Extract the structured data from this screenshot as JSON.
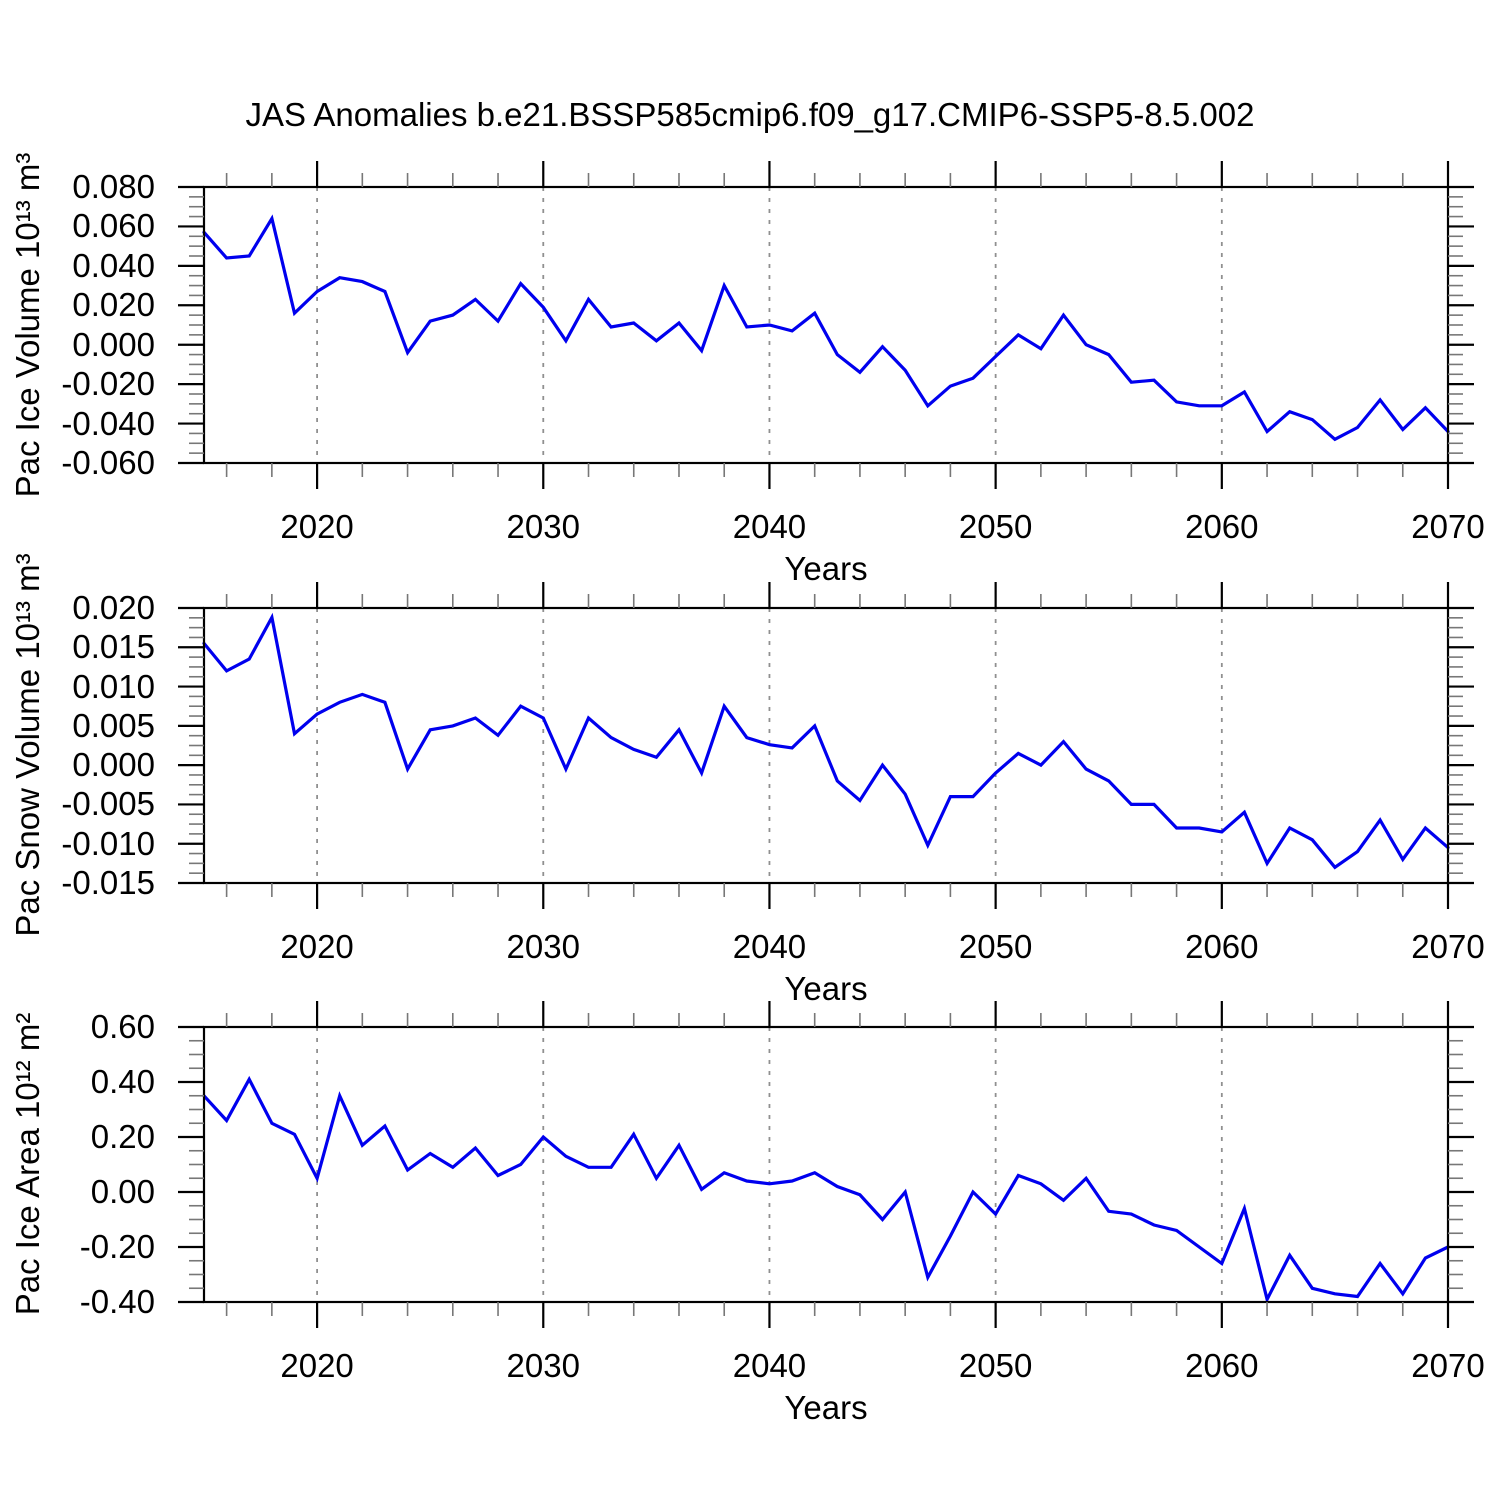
{
  "title": "JAS Anomalies b.e21.BSSP585cmip6.f09_g17.CMIP6-SSP5-8.5.002",
  "line_color": "#0000ee",
  "grid_color": "#909090",
  "axis_color": "#000000",
  "chart_data": [
    {
      "type": "line",
      "ylabel": "Pac Ice Volume 10¹³ m³",
      "xlabel": "Years",
      "series_name": "Pac Ice Volume anomaly",
      "years": [
        2015,
        2016,
        2017,
        2018,
        2019,
        2020,
        2021,
        2022,
        2023,
        2024,
        2025,
        2026,
        2027,
        2028,
        2029,
        2030,
        2031,
        2032,
        2033,
        2034,
        2035,
        2036,
        2037,
        2038,
        2039,
        2040,
        2041,
        2042,
        2043,
        2044,
        2045,
        2046,
        2047,
        2048,
        2049,
        2050,
        2051,
        2052,
        2053,
        2054,
        2055,
        2056,
        2057,
        2058,
        2059,
        2060,
        2061,
        2062,
        2063,
        2064,
        2065,
        2066,
        2067,
        2068,
        2069,
        2070
      ],
      "values": [
        0.057,
        0.044,
        0.045,
        0.064,
        0.016,
        0.027,
        0.034,
        0.032,
        0.027,
        -0.004,
        0.012,
        0.015,
        0.023,
        0.012,
        0.031,
        0.019,
        0.002,
        0.023,
        0.009,
        0.011,
        0.002,
        0.011,
        -0.003,
        0.03,
        0.009,
        0.01,
        0.007,
        0.016,
        -0.005,
        -0.014,
        -0.001,
        -0.013,
        -0.031,
        -0.021,
        -0.017,
        -0.006,
        0.005,
        -0.002,
        0.015,
        0.0,
        -0.005,
        -0.019,
        -0.018,
        -0.029,
        -0.031,
        -0.031,
        -0.024,
        -0.044,
        -0.034,
        -0.038,
        -0.048,
        -0.042,
        -0.028,
        -0.043,
        -0.032,
        -0.044
      ],
      "ylim": [
        -0.06,
        0.08
      ],
      "yticks": [
        "0.080",
        "0.060",
        "0.040",
        "0.020",
        "0.000",
        "-0.020",
        "-0.040",
        "-0.060"
      ],
      "ytick_step": 0.02,
      "ytick_minor": 0.005,
      "xlim": [
        2015,
        2070
      ],
      "xticks": [
        "2020",
        "2030",
        "2040",
        "2050",
        "2060",
        "2070"
      ],
      "xtick_minor": 2,
      "grid_years": [
        2020,
        2030,
        2040,
        2050,
        2060
      ],
      "grid": "vertical-dashed",
      "legend": "none"
    },
    {
      "type": "line",
      "ylabel": "Pac Snow Volume 10¹³ m³",
      "xlabel": "Years",
      "series_name": "Pac Snow Volume anomaly",
      "years": [
        2015,
        2016,
        2017,
        2018,
        2019,
        2020,
        2021,
        2022,
        2023,
        2024,
        2025,
        2026,
        2027,
        2028,
        2029,
        2030,
        2031,
        2032,
        2033,
        2034,
        2035,
        2036,
        2037,
        2038,
        2039,
        2040,
        2041,
        2042,
        2043,
        2044,
        2045,
        2046,
        2047,
        2048,
        2049,
        2050,
        2051,
        2052,
        2053,
        2054,
        2055,
        2056,
        2057,
        2058,
        2059,
        2060,
        2061,
        2062,
        2063,
        2064,
        2065,
        2066,
        2067,
        2068,
        2069,
        2070
      ],
      "values": [
        0.0155,
        0.012,
        0.0135,
        0.0188,
        0.004,
        0.0065,
        0.008,
        0.009,
        0.008,
        -0.0005,
        0.0045,
        0.005,
        0.006,
        0.0038,
        0.0075,
        0.006,
        -0.0005,
        0.006,
        0.0035,
        0.002,
        0.001,
        0.0045,
        -0.001,
        0.0075,
        0.0035,
        0.0026,
        0.0022,
        0.005,
        -0.002,
        -0.0045,
        0.0,
        -0.0037,
        -0.0102,
        -0.004,
        -0.004,
        -0.001,
        0.0015,
        0.0,
        0.003,
        -0.0005,
        -0.002,
        -0.005,
        -0.005,
        -0.008,
        -0.008,
        -0.0085,
        -0.006,
        -0.0125,
        -0.008,
        -0.0095,
        -0.013,
        -0.011,
        -0.007,
        -0.012,
        -0.008,
        -0.0105
      ],
      "ylim": [
        -0.015,
        0.02
      ],
      "yticks": [
        "0.020",
        "0.015",
        "0.010",
        "0.005",
        "0.000",
        "-0.005",
        "-0.010",
        "-0.015"
      ],
      "ytick_step": 0.005,
      "ytick_minor": 0.00125,
      "xlim": [
        2015,
        2070
      ],
      "xticks": [
        "2020",
        "2030",
        "2040",
        "2050",
        "2060",
        "2070"
      ],
      "xtick_minor": 2,
      "grid_years": [
        2020,
        2030,
        2040,
        2050,
        2060
      ],
      "grid": "vertical-dashed",
      "legend": "none"
    },
    {
      "type": "line",
      "ylabel": "Pac Ice Area 10¹² m²",
      "xlabel": "Years",
      "series_name": "Pac Ice Area anomaly",
      "years": [
        2015,
        2016,
        2017,
        2018,
        2019,
        2020,
        2021,
        2022,
        2023,
        2024,
        2025,
        2026,
        2027,
        2028,
        2029,
        2030,
        2031,
        2032,
        2033,
        2034,
        2035,
        2036,
        2037,
        2038,
        2039,
        2040,
        2041,
        2042,
        2043,
        2044,
        2045,
        2046,
        2047,
        2048,
        2049,
        2050,
        2051,
        2052,
        2053,
        2054,
        2055,
        2056,
        2057,
        2058,
        2059,
        2060,
        2061,
        2062,
        2063,
        2064,
        2065,
        2066,
        2067,
        2068,
        2069,
        2070
      ],
      "values": [
        0.35,
        0.26,
        0.41,
        0.25,
        0.21,
        0.05,
        0.35,
        0.17,
        0.24,
        0.08,
        0.14,
        0.09,
        0.16,
        0.06,
        0.1,
        0.2,
        0.13,
        0.09,
        0.09,
        0.21,
        0.05,
        0.17,
        0.01,
        0.07,
        0.04,
        0.03,
        0.04,
        0.07,
        0.02,
        -0.01,
        -0.1,
        0.0,
        -0.31,
        -0.16,
        0.0,
        -0.08,
        0.06,
        0.03,
        -0.03,
        0.05,
        -0.07,
        -0.08,
        -0.12,
        -0.14,
        -0.2,
        -0.26,
        -0.06,
        -0.39,
        -0.23,
        -0.35,
        -0.37,
        -0.38,
        -0.26,
        -0.37,
        -0.24,
        -0.2
      ],
      "ylim": [
        -0.4,
        0.6
      ],
      "yticks": [
        "0.60",
        "0.40",
        "0.20",
        "0.00",
        "-0.20",
        "-0.40"
      ],
      "ytick_step": 0.2,
      "ytick_minor": 0.05,
      "xlim": [
        2015,
        2070
      ],
      "xticks": [
        "2020",
        "2030",
        "2040",
        "2050",
        "2060",
        "2070"
      ],
      "xtick_minor": 2,
      "grid_years": [
        2020,
        2030,
        2040,
        2050,
        2060
      ],
      "grid": "vertical-dashed",
      "legend": "none"
    }
  ]
}
